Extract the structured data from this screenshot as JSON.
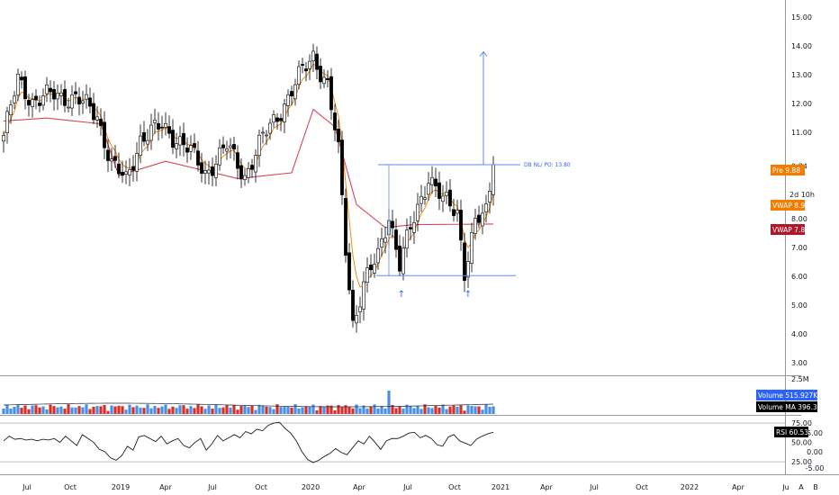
{
  "chart_data": {
    "type": "candlestick",
    "price_axis": {
      "ticks": [
        "15.00",
        "14.00",
        "13.00",
        "12.00",
        "11.00",
        "9.84",
        "8.00",
        "7.00",
        "6.00",
        "5.00",
        "4.00",
        "3.00"
      ],
      "range": [
        2.6,
        15.6
      ]
    },
    "time_axis": {
      "ticks": [
        "Jul",
        "Oct",
        "2019",
        "Apr",
        "Jul",
        "Oct",
        "2020",
        "Apr",
        "Jul",
        "Oct",
        "2021",
        "Apr",
        "Jul",
        "Oct",
        "2022",
        "Apr",
        "Ju"
      ]
    },
    "anchor_points": [
      {
        "t": 0,
        "c": 10.9
      },
      {
        "t": 4,
        "c": 12.8
      },
      {
        "t": 8,
        "c": 12.1
      },
      {
        "t": 14,
        "c": 12.3
      },
      {
        "t": 20,
        "c": 12.2
      },
      {
        "t": 26,
        "c": 11.6
      },
      {
        "t": 30,
        "c": 9.9
      },
      {
        "t": 34,
        "c": 9.3
      },
      {
        "t": 38,
        "c": 10.8
      },
      {
        "t": 44,
        "c": 11.2
      },
      {
        "t": 50,
        "c": 10.6
      },
      {
        "t": 56,
        "c": 9.6
      },
      {
        "t": 62,
        "c": 10.5
      },
      {
        "t": 67,
        "c": 9.5
      },
      {
        "t": 72,
        "c": 10.8
      },
      {
        "t": 78,
        "c": 12.0
      },
      {
        "t": 83,
        "c": 13.1
      },
      {
        "t": 86,
        "c": 13.7
      },
      {
        "t": 90,
        "c": 12.6
      },
      {
        "t": 93,
        "c": 10.3
      },
      {
        "t": 95,
        "c": 7.0
      },
      {
        "t": 97,
        "c": 4.4
      },
      {
        "t": 100,
        "c": 5.7
      },
      {
        "t": 104,
        "c": 6.7
      },
      {
        "t": 107,
        "c": 8.2
      },
      {
        "t": 110,
        "c": 6.4
      },
      {
        "t": 114,
        "c": 8.0
      },
      {
        "t": 118,
        "c": 9.5
      },
      {
        "t": 122,
        "c": 8.6
      },
      {
        "t": 126,
        "c": 8.3
      },
      {
        "t": 128,
        "c": 6.2
      },
      {
        "t": 131,
        "c": 7.8
      },
      {
        "t": 134,
        "c": 8.2
      },
      {
        "t": 136,
        "c": 9.88
      }
    ],
    "vwap_points": [
      {
        "t": 0,
        "v": 11.4
      },
      {
        "t": 12,
        "v": 11.5
      },
      {
        "t": 27,
        "v": 11.3
      },
      {
        "t": 32,
        "v": 9.5
      },
      {
        "t": 45,
        "v": 10.0
      },
      {
        "t": 65,
        "v": 9.4
      },
      {
        "t": 80,
        "v": 9.6
      },
      {
        "t": 86,
        "v": 11.8
      },
      {
        "t": 92,
        "v": 11.2
      },
      {
        "t": 98,
        "v": 8.5
      },
      {
        "t": 106,
        "v": 7.7
      },
      {
        "t": 114,
        "v": 7.8
      },
      {
        "t": 136,
        "v": 7.82
      }
    ],
    "annotations": {
      "double_bottom_label": "DB NL/ PO: 13.80",
      "neckline": 9.88,
      "support": 6.03,
      "target": 13.8,
      "arrows": [
        "↑",
        "↑"
      ]
    },
    "price_tags": [
      {
        "label": "Pre",
        "value": "9.88",
        "color": "#f57c00"
      },
      {
        "label": "VWAP",
        "value": "8.93",
        "color": "#f57c00"
      },
      {
        "label": "VWAP",
        "value": "7.82",
        "color": "#b0172b"
      }
    ],
    "countdown": "2d 10h",
    "volume": {
      "axis_label": "2.5M",
      "tags": [
        {
          "label": "Volume",
          "value": "515.927K",
          "color": "#2962ff"
        },
        {
          "label": "Volume MA",
          "value": "396.367K",
          "color": "#000000"
        }
      ]
    },
    "rsi": {
      "ticks": [
        "75.00",
        "50.00",
        "25.00"
      ],
      "tag": {
        "label": "RSI",
        "value": "60.53",
        "color": "#000000"
      },
      "extra_ticks": [
        "5.00",
        "0.00",
        "-5.00"
      ],
      "range": [
        10,
        82
      ],
      "values": [
        52,
        58,
        54,
        55,
        53,
        54,
        52,
        54,
        53,
        55,
        50,
        58,
        52,
        46,
        60,
        55,
        50,
        41,
        38,
        30,
        27,
        33,
        45,
        40,
        57,
        59,
        55,
        51,
        58,
        48,
        52,
        55,
        46,
        43,
        50,
        55,
        40,
        48,
        59,
        52,
        56,
        60,
        56,
        64,
        61,
        67,
        65,
        72,
        75,
        76,
        68,
        62,
        52,
        38,
        28,
        24,
        27,
        32,
        36,
        42,
        37,
        34,
        43,
        52,
        48,
        58,
        50,
        41,
        52,
        55,
        55,
        58,
        62,
        63,
        56,
        59,
        55,
        47,
        45,
        57,
        60,
        52,
        49,
        46,
        54,
        58,
        61,
        63
      ]
    },
    "buttons": [
      "A",
      "B"
    ]
  }
}
